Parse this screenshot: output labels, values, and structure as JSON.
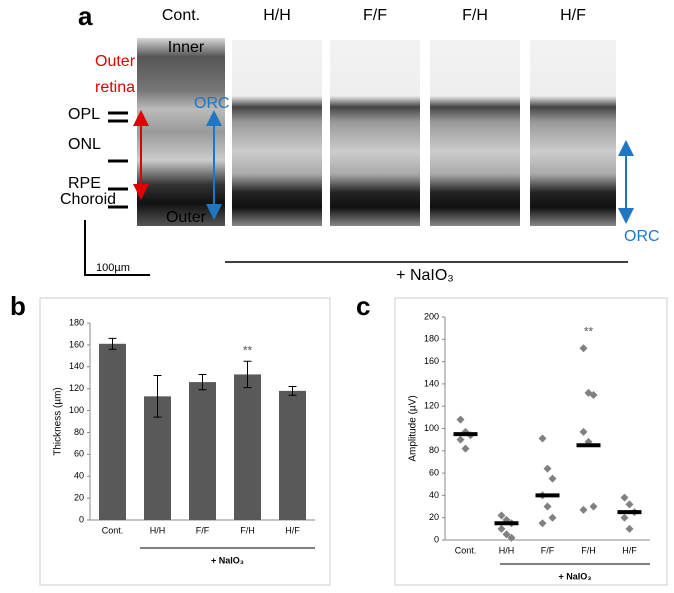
{
  "panel_a": {
    "letter": "a",
    "columns": [
      "Cont.",
      "H/H",
      "F/F",
      "F/H",
      "H/F"
    ],
    "inner": "Inner",
    "outer": "Outer",
    "outer_retina": [
      "Outer",
      "retina"
    ],
    "layers": [
      "OPL",
      "ONL",
      "RPE",
      "Choroid"
    ],
    "orc_left": "ORC",
    "orc_right": "ORC",
    "scale": "100µm",
    "treatment": "+ NaIO₃"
  },
  "panel_letters": [
    "b",
    "c"
  ],
  "chart_data": [
    {
      "type": "bar",
      "ylabel": "Thickness (µm)",
      "categories": [
        "Cont.",
        "H/H",
        "F/F",
        "F/H",
        "H/F"
      ],
      "values": [
        161,
        113,
        126,
        133,
        118
      ],
      "errors": [
        5,
        19,
        7,
        12,
        4
      ],
      "color": "#595959",
      "ylim": [
        0,
        180
      ],
      "yticks": [
        0,
        20,
        40,
        60,
        80,
        100,
        120,
        140,
        160,
        180
      ],
      "annotation": "**",
      "group_label": "+ NaIO₃"
    },
    {
      "type": "strip",
      "ylabel": "Amplitude (µV)",
      "categories": [
        "Cont.",
        "H/H",
        "F/F",
        "F/H",
        "H/F"
      ],
      "points": [
        [
          108,
          97,
          94,
          90,
          82
        ],
        [
          22,
          18,
          15,
          10,
          5,
          2
        ],
        [
          91,
          64,
          55,
          40,
          30,
          20,
          15
        ],
        [
          172,
          132,
          130,
          97,
          88,
          30,
          27
        ],
        [
          38,
          32,
          25,
          20,
          10
        ]
      ],
      "means": [
        95,
        15,
        40,
        85,
        25
      ],
      "color": "#808080",
      "ylim": [
        0,
        200
      ],
      "yticks": [
        0,
        20,
        40,
        60,
        80,
        100,
        120,
        140,
        160,
        180,
        200
      ],
      "annotation": "**",
      "group_label": "+ NaIO₃"
    }
  ]
}
